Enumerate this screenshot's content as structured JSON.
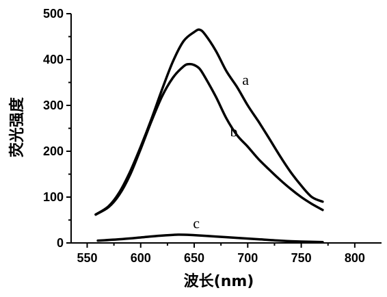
{
  "chart_data": {
    "type": "line",
    "xlabel": "波长(nm)",
    "ylabel": "荧光强度",
    "xlim": [
      535,
      825
    ],
    "ylim": [
      0,
      500
    ],
    "xticks": [
      550,
      600,
      650,
      700,
      750,
      800
    ],
    "yticks": [
      0,
      100,
      200,
      300,
      400,
      500
    ],
    "series": [
      {
        "name": "a",
        "x": [
          558,
          570,
          580,
          590,
          600,
          610,
          620,
          630,
          640,
          650,
          655,
          660,
          670,
          680,
          690,
          700,
          710,
          720,
          730,
          740,
          750,
          760,
          770
        ],
        "y": [
          62,
          80,
          110,
          155,
          210,
          270,
          335,
          395,
          440,
          460,
          465,
          455,
          420,
          375,
          340,
          300,
          265,
          228,
          190,
          155,
          125,
          100,
          90
        ]
      },
      {
        "name": "b",
        "x": [
          558,
          570,
          580,
          590,
          600,
          610,
          620,
          630,
          640,
          645,
          650,
          655,
          660,
          670,
          680,
          690,
          700,
          710,
          720,
          730,
          740,
          750,
          760,
          770
        ],
        "y": [
          62,
          78,
          105,
          148,
          205,
          265,
          320,
          360,
          385,
          390,
          388,
          380,
          362,
          320,
          272,
          235,
          210,
          183,
          160,
          138,
          118,
          100,
          85,
          72
        ]
      },
      {
        "name": "c",
        "x": [
          560,
          580,
          600,
          620,
          635,
          650,
          670,
          690,
          710,
          730,
          750,
          770
        ],
        "y": [
          5,
          8,
          12,
          16,
          18,
          17,
          14,
          11,
          8,
          5,
          3,
          2
        ]
      }
    ],
    "series_labels": [
      {
        "text": "a",
        "x": 698,
        "y": 345
      },
      {
        "text": "b",
        "x": 687,
        "y": 232
      },
      {
        "text": "c",
        "x": 652,
        "y": 32
      }
    ]
  }
}
